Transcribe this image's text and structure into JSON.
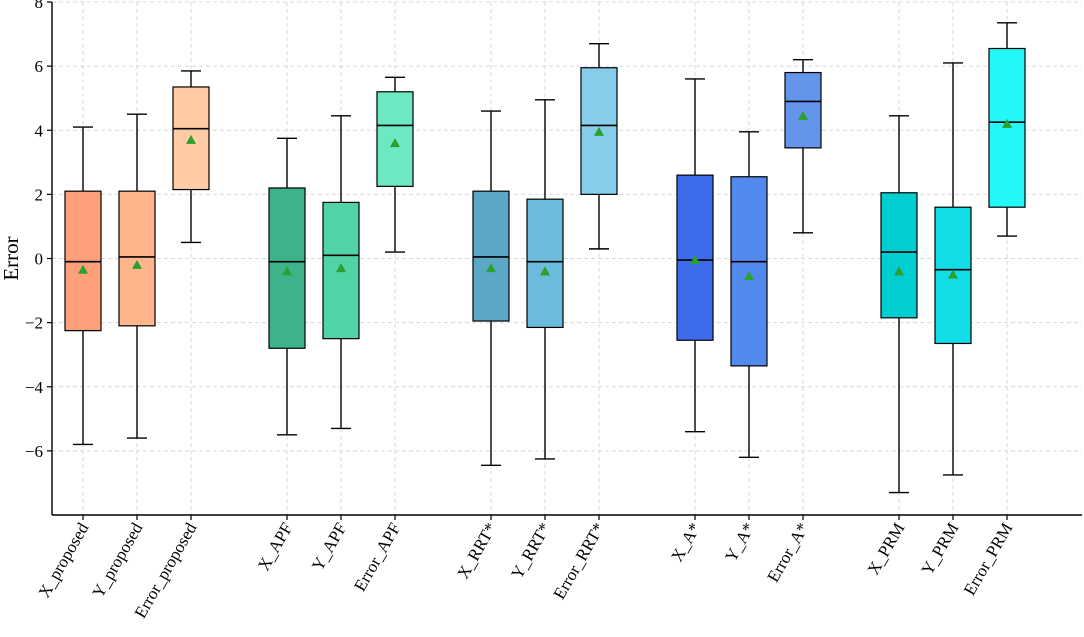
{
  "chart_data": {
    "type": "box",
    "title": "",
    "xlabel": "",
    "ylabel": "Error",
    "ylim": [
      -8,
      8
    ],
    "yticks": [
      -6,
      -4,
      -2,
      0,
      2,
      4,
      6,
      8
    ],
    "grid": true,
    "groups": [
      {
        "name": "proposed",
        "boxes": [
          {
            "label": "X_proposed",
            "color": "#FFA07A",
            "whisker_low": -5.8,
            "q1": -2.25,
            "median": -0.1,
            "q3": 2.1,
            "whisker_high": 4.1,
            "mean": -0.35
          },
          {
            "label": "Y_proposed",
            "color": "#FFB58C",
            "whisker_low": -5.6,
            "q1": -2.1,
            "median": 0.05,
            "q3": 2.1,
            "whisker_high": 4.5,
            "mean": -0.2
          },
          {
            "label": "Error_proposed",
            "color": "#FFCBA4",
            "whisker_low": 0.5,
            "q1": 2.15,
            "median": 4.05,
            "q3": 5.35,
            "whisker_high": 5.85,
            "mean": 3.7
          }
        ]
      },
      {
        "name": "APF",
        "boxes": [
          {
            "label": "X_APF",
            "color": "#3CB38A",
            "whisker_low": -5.5,
            "q1": -2.8,
            "median": -0.1,
            "q3": 2.2,
            "whisker_high": 3.75,
            "mean": -0.4
          },
          {
            "label": "Y_APF",
            "color": "#52D3A5",
            "whisker_low": -5.3,
            "q1": -2.5,
            "median": 0.1,
            "q3": 1.75,
            "whisker_high": 4.45,
            "mean": -0.3
          },
          {
            "label": "Error_APF",
            "color": "#6CE8C3",
            "whisker_low": 0.2,
            "q1": 2.25,
            "median": 4.15,
            "q3": 5.2,
            "whisker_high": 5.65,
            "mean": 3.6
          }
        ]
      },
      {
        "name": "RRT*",
        "boxes": [
          {
            "label": "X_RRT*",
            "color": "#5AA7C6",
            "whisker_low": -6.45,
            "q1": -1.95,
            "median": 0.05,
            "q3": 2.1,
            "whisker_high": 4.6,
            "mean": -0.3
          },
          {
            "label": "Y_RRT*",
            "color": "#6BBBDA",
            "whisker_low": -6.25,
            "q1": -2.15,
            "median": -0.1,
            "q3": 1.85,
            "whisker_high": 4.95,
            "mean": -0.4
          },
          {
            "label": "Error_RRT*",
            "color": "#87CEEB",
            "whisker_low": 0.3,
            "q1": 2.0,
            "median": 4.15,
            "q3": 5.95,
            "whisker_high": 6.7,
            "mean": 3.95
          }
        ]
      },
      {
        "name": "A*",
        "boxes": [
          {
            "label": "X_A*",
            "color": "#3D6BEB",
            "whisker_low": -5.4,
            "q1": -2.55,
            "median": -0.05,
            "q3": 2.6,
            "whisker_high": 5.6,
            "mean": -0.05
          },
          {
            "label": "Y_A*",
            "color": "#5289EC",
            "whisker_low": -6.2,
            "q1": -3.35,
            "median": -0.1,
            "q3": 2.55,
            "whisker_high": 3.95,
            "mean": -0.55
          },
          {
            "label": "Error_A*",
            "color": "#6495ED",
            "whisker_low": 0.8,
            "q1": 3.45,
            "median": 4.9,
            "q3": 5.8,
            "whisker_high": 6.2,
            "mean": 4.45
          }
        ]
      },
      {
        "name": "PRM",
        "boxes": [
          {
            "label": "X_PRM",
            "color": "#00CED1",
            "whisker_low": -7.3,
            "q1": -1.85,
            "median": 0.2,
            "q3": 2.05,
            "whisker_high": 4.45,
            "mean": -0.4
          },
          {
            "label": "Y_PRM",
            "color": "#10DDE5",
            "whisker_low": -6.75,
            "q1": -2.65,
            "median": -0.35,
            "q3": 1.6,
            "whisker_high": 6.1,
            "mean": -0.5
          },
          {
            "label": "Error_PRM",
            "color": "#22F7FA",
            "whisker_low": 0.7,
            "q1": 1.6,
            "median": 4.25,
            "q3": 6.55,
            "whisker_high": 7.35,
            "mean": 4.2
          }
        ]
      }
    ],
    "mean_marker_color": "#2CA02C",
    "line_color": "#000000"
  }
}
